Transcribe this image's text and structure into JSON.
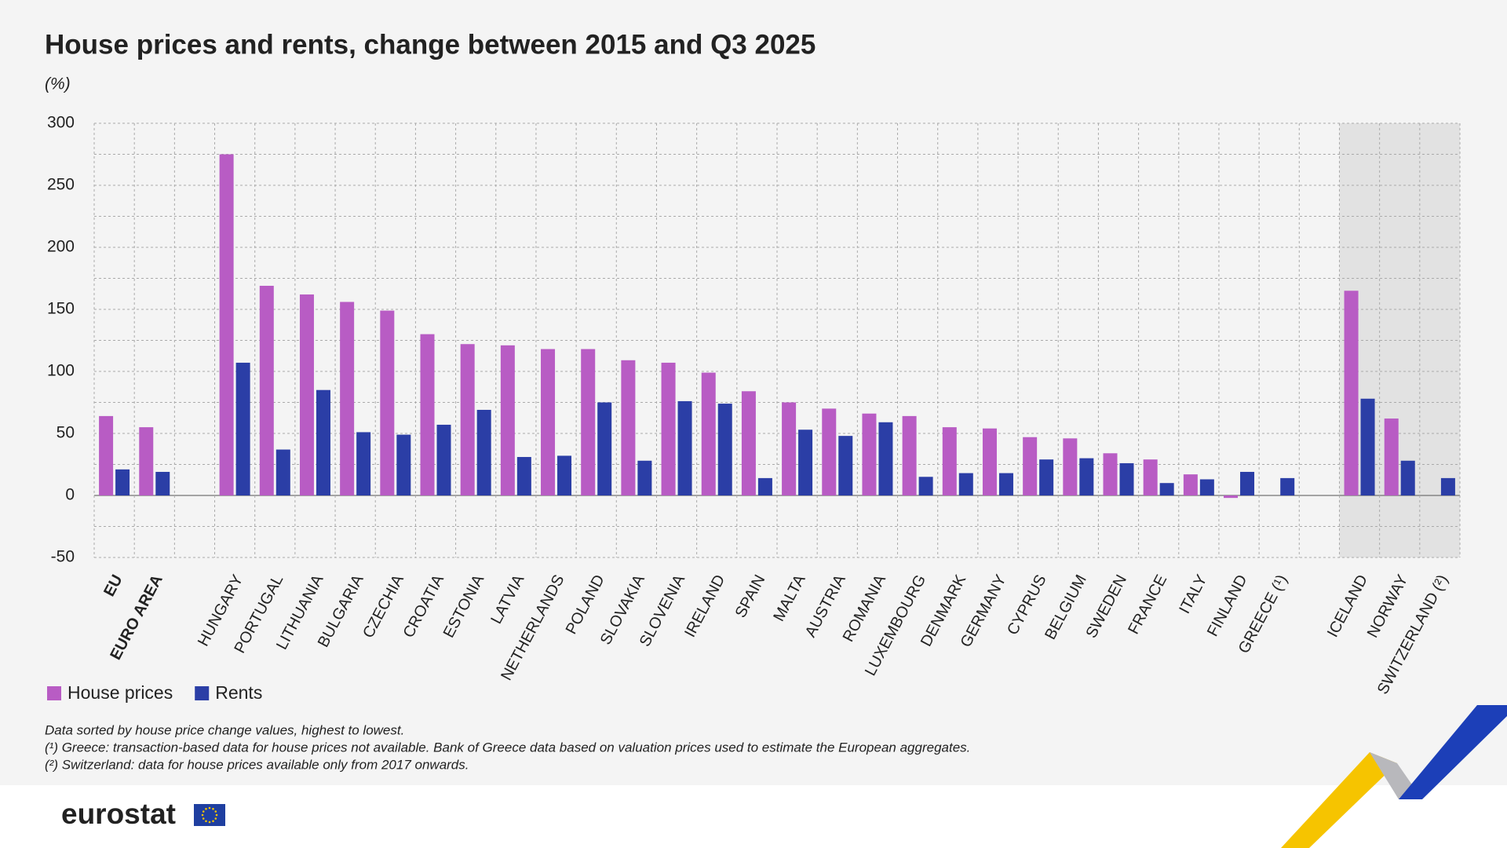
{
  "chart_data": {
    "type": "bar",
    "title": "House prices and rents, change between 2015 and Q3 2025",
    "y_label": "(%)",
    "categories": [
      "EU",
      "EURO AREA",
      null,
      "HUNGARY",
      "PORTUGAL",
      "LITHUANIA",
      "BULGARIA",
      "CZECHIA",
      "CROATIA",
      "ESTONIA",
      "LATVIA",
      "NETHERLANDS",
      "POLAND",
      "SLOVAKIA",
      "SLOVENIA",
      "IRELAND",
      "SPAIN",
      "MALTA",
      "AUSTRIA",
      "ROMANIA",
      "LUXEMBOURG",
      "DENMARK",
      "GERMANY",
      "CYPRUS",
      "BELGIUM",
      "SWEDEN",
      "FRANCE",
      "ITALY",
      "FINLAND",
      "GREECE (¹)",
      null,
      "ICELAND",
      "NORWAY",
      "SWITZERLAND (²)"
    ],
    "series": [
      {
        "name": "House prices",
        "color": "#b85cc4",
        "values": [
          64,
          55,
          null,
          275,
          169,
          162,
          156,
          149,
          130,
          122,
          121,
          118,
          118,
          109,
          107,
          99,
          84,
          75,
          70,
          66,
          64,
          55,
          54,
          47,
          46,
          34,
          29,
          17,
          -2,
          null,
          null,
          165,
          62,
          null
        ]
      },
      {
        "name": "Rents",
        "color": "#2b3ea6",
        "values": [
          21,
          19,
          null,
          107,
          37,
          85,
          51,
          49,
          57,
          69,
          31,
          32,
          75,
          28,
          76,
          74,
          14,
          53,
          48,
          59,
          15,
          18,
          18,
          29,
          30,
          26,
          10,
          13,
          19,
          14,
          null,
          78,
          28,
          14
        ]
      }
    ],
    "ylim": [
      -50,
      300
    ],
    "yticks": [
      -50,
      0,
      50,
      100,
      150,
      200,
      250,
      300
    ],
    "y_minor_ticks": [
      -25,
      25,
      75,
      125,
      175,
      225,
      275
    ],
    "grid": true,
    "notes": [
      "Data sorted by house price change values, highest to lowest.",
      "(¹) Greece: transaction-based data for house prices not available. Bank of Greece data based on valuation prices used to estimate the European aggregates.",
      "(²) Switzerland: data for house prices available only from 2017 onwards."
    ]
  },
  "footer": {
    "logo": "eurostat"
  }
}
